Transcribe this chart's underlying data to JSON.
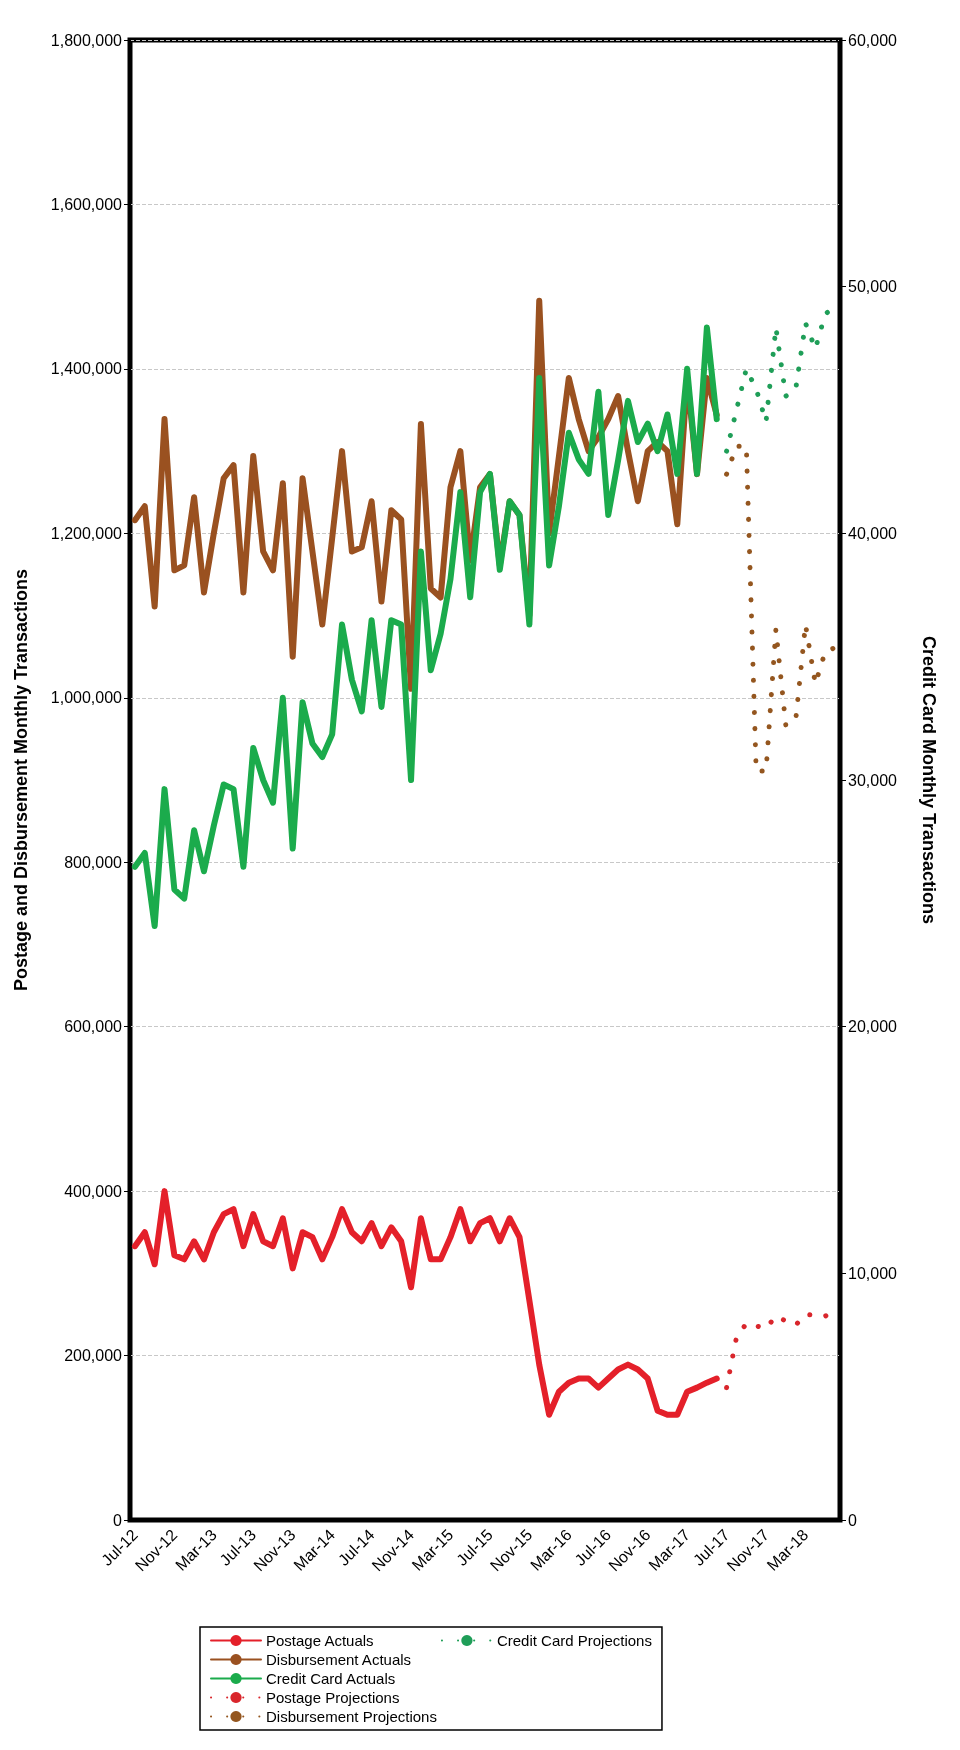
{
  "chart_data": {
    "type": "line",
    "ylabel": "Postage and Disbursement Monthly Transactions",
    "y2label": "Credit Card Monthly Transactions",
    "categories": [
      "Jul-12",
      null,
      null,
      null,
      "Nov-12",
      null,
      null,
      null,
      "Mar-13",
      null,
      null,
      null,
      "Jul-13",
      null,
      null,
      null,
      "Nov-13",
      null,
      null,
      null,
      "Mar-14",
      null,
      null,
      null,
      "Jul-14",
      null,
      null,
      null,
      "Nov-14",
      null,
      null,
      null,
      "Mar-15",
      null,
      null,
      null,
      "Jul-15",
      null,
      null,
      null,
      "Nov-15",
      null,
      null,
      null,
      "Mar-16",
      null,
      null,
      null,
      "Jul-16",
      null,
      null,
      null,
      "Nov-16",
      null,
      null,
      null,
      "Mar-17",
      null,
      null,
      null,
      "Jul-17",
      null,
      null,
      null,
      "Nov-17",
      null,
      null,
      null,
      "Mar-18",
      null,
      null,
      null
    ],
    "series": [
      {
        "name": "Postage Actuals",
        "color": "#e4202a",
        "line_style": "solid",
        "values": [
          333000,
          350000,
          311000,
          400000,
          322000,
          317000,
          339000,
          317000,
          350000,
          372000,
          378000,
          333000,
          372000,
          339000,
          333000,
          367000,
          306000,
          350000,
          344000,
          317000,
          344000,
          378000,
          350000,
          339000,
          361000,
          333000,
          356000,
          339000,
          283000,
          367000,
          317000,
          317000,
          344000,
          378000,
          339000,
          361000,
          367000,
          339000,
          367000,
          344000,
          267000,
          189000,
          128000,
          156000,
          167000,
          172000,
          172000,
          161000,
          172000,
          183000,
          189000,
          183000,
          172000,
          133000,
          128000,
          128000,
          156000,
          161000,
          167000,
          172000,
          null,
          null,
          null,
          null,
          null,
          null,
          null,
          null,
          null,
          null,
          null,
          null
        ]
      },
      {
        "name": "Disbursement Actuals",
        "color": "#9a5120",
        "line_style": "solid",
        "values": [
          1216000,
          1233000,
          1111000,
          1339000,
          1155000,
          1161000,
          1244000,
          1128000,
          1200000,
          1267000,
          1283000,
          1128000,
          1294000,
          1178000,
          1155000,
          1261000,
          1050000,
          1267000,
          1178000,
          1089000,
          1194000,
          1300000,
          1178000,
          1183000,
          1239000,
          1117000,
          1228000,
          1217000,
          1011000,
          1333000,
          1133000,
          1122000,
          1256000,
          1300000,
          1167000,
          1256000,
          1272000,
          1161000,
          1239000,
          1222000,
          1100000,
          1483000,
          1200000,
          1294000,
          1389000,
          1339000,
          1300000,
          1317000,
          1339000,
          1367000,
          1300000,
          1239000,
          1300000,
          1311000,
          1300000,
          1211000,
          1389000,
          1272000,
          1389000,
          1344000,
          null,
          null,
          null,
          null,
          null,
          null,
          null,
          null,
          null,
          null,
          null,
          null
        ]
      },
      {
        "name": "Credit Card Actuals",
        "color": "#1bab4c",
        "line_style": "solid",
        "axis": "y2",
        "values": [
          26480,
          27040,
          24080,
          29630,
          25560,
          25190,
          27960,
          26300,
          28150,
          29820,
          29630,
          26480,
          31300,
          30000,
          29080,
          33330,
          27220,
          33150,
          31480,
          30930,
          31850,
          36300,
          34070,
          32780,
          36480,
          32960,
          36480,
          36300,
          30000,
          39260,
          34450,
          35930,
          38150,
          41670,
          37410,
          41670,
          42410,
          38520,
          41300,
          40740,
          36300,
          46300,
          38700,
          41110,
          44080,
          43000,
          42410,
          45740,
          40740,
          42960,
          45370,
          43700,
          44450,
          43330,
          44820,
          42410,
          46670,
          42410,
          48340,
          44630,
          null,
          null,
          null,
          null,
          null,
          null,
          null,
          null,
          null,
          null,
          null,
          null
        ]
      },
      {
        "name": "Postage Projections",
        "color": "#d9262c",
        "line_style": "dotted",
        "values": [
          null,
          null,
          null,
          null,
          null,
          null,
          null,
          null,
          null,
          null,
          null,
          null,
          null,
          null,
          null,
          null,
          null,
          null,
          null,
          null,
          null,
          null,
          null,
          null,
          null,
          null,
          null,
          null,
          null,
          null,
          null,
          null,
          null,
          null,
          null,
          null,
          null,
          null,
          null,
          null,
          null,
          null,
          null,
          null,
          null,
          null,
          null,
          null,
          null,
          null,
          null,
          null,
          null,
          null,
          null,
          null,
          null,
          null,
          null,
          null,
          161000,
          222000,
          239000,
          236000,
          233000,
          248000,
          242000,
          237000,
          250000,
          249000,
          248000,
          253000
        ]
      },
      {
        "name": "Disbursement Projections",
        "color": "#94561f",
        "line_style": "dotted",
        "values": [
          null,
          null,
          null,
          null,
          null,
          null,
          null,
          null,
          null,
          null,
          null,
          null,
          null,
          null,
          null,
          null,
          null,
          null,
          null,
          null,
          null,
          null,
          null,
          null,
          null,
          null,
          null,
          null,
          null,
          null,
          null,
          null,
          null,
          null,
          null,
          null,
          null,
          null,
          null,
          null,
          null,
          null,
          null,
          null,
          null,
          null,
          null,
          null,
          null,
          null,
          null,
          null,
          null,
          null,
          null,
          null,
          null,
          null,
          null,
          null,
          1272000,
          1306000,
          1306000,
          911000,
          911000,
          1083000,
          967000,
          972000,
          1089000,
          1017000,
          1056000,
          1061000
        ]
      },
      {
        "name": "Credit Card Projections",
        "color": "#1f9e58",
        "line_style": "dotted",
        "axis": "y2",
        "values": [
          null,
          null,
          null,
          null,
          null,
          null,
          null,
          null,
          null,
          null,
          null,
          null,
          null,
          null,
          null,
          null,
          null,
          null,
          null,
          null,
          null,
          null,
          null,
          null,
          null,
          null,
          null,
          null,
          null,
          null,
          null,
          null,
          null,
          null,
          null,
          null,
          null,
          null,
          null,
          null,
          null,
          null,
          null,
          null,
          null,
          null,
          null,
          null,
          null,
          null,
          null,
          null,
          null,
          null,
          null,
          null,
          null,
          null,
          null,
          null,
          43330,
          45000,
          46670,
          45850,
          44520,
          48340,
          45560,
          45820,
          48520,
          47480,
          48890,
          49190
        ]
      }
    ],
    "ylim": [
      0,
      1800000
    ],
    "yticks": [
      0,
      {
        "value": 200000,
        "label": "200,000"
      },
      {
        "value": 400000,
        "label": "400,000"
      },
      {
        "value": 600000,
        "label": "600,000"
      },
      {
        "value": 800000,
        "label": "800,000"
      },
      {
        "value": 1000000,
        "label": "1,000,000"
      },
      {
        "value": 1200000,
        "label": "1,200,000"
      },
      {
        "value": 1400000,
        "label": "1,400,000"
      },
      {
        "value": 1600000,
        "label": "1,600,000"
      },
      {
        "value": 1800000,
        "label": "1,800,000"
      }
    ],
    "y2lim": [
      0,
      60000
    ],
    "y2ticks": [
      0,
      {
        "value": 10000,
        "label": "10,000"
      },
      {
        "value": 20000,
        "label": "20,000"
      },
      {
        "value": 30000,
        "label": "30,000"
      },
      {
        "value": 40000,
        "label": "40,000"
      },
      {
        "value": 50000,
        "label": "50,000"
      },
      {
        "value": 60000,
        "label": "60,000"
      }
    ],
    "grid": "y",
    "legend": "bottom",
    "marker": "none"
  }
}
